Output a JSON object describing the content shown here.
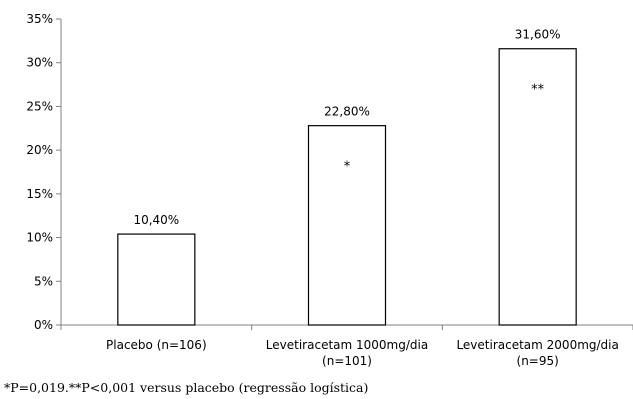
{
  "chart_data": {
    "type": "bar",
    "title": "",
    "xlabel": "",
    "ylabel": "",
    "ylim": [
      0,
      35
    ],
    "y_ticks": [
      "0%",
      "5%",
      "10%",
      "15%",
      "20%",
      "25%",
      "30%",
      "35%"
    ],
    "y_tick_values": [
      0,
      5,
      10,
      15,
      20,
      25,
      30,
      35
    ],
    "grid": false,
    "legend": "none",
    "categories": [
      [
        "Placebo (n=106)"
      ],
      [
        "Levetiracetam 1000mg/dia",
        "(n=101)"
      ],
      [
        "Levetiracetam 2000mg/dia",
        "(n=95)"
      ]
    ],
    "values": [
      10.4,
      22.8,
      31.6
    ],
    "value_labels": [
      "10,40%",
      "22,80%",
      "31,60%"
    ],
    "significance_marks": [
      "",
      "*",
      "**"
    ],
    "bar_fill": "#ffffff",
    "bar_stroke": "#000000"
  },
  "footnote": "*P=0,019.**P<0,001 versus placebo (regressão logística)"
}
